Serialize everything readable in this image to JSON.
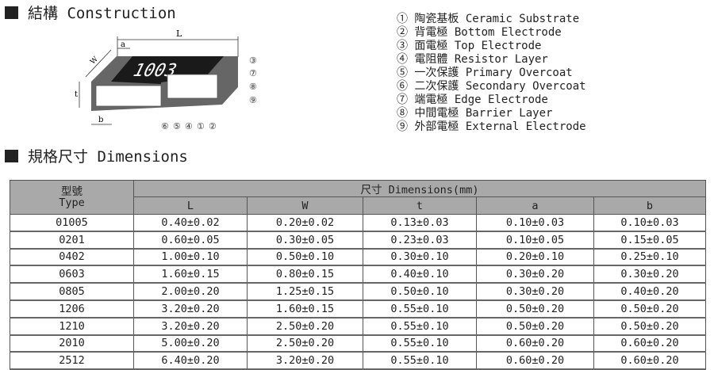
{
  "construction": {
    "title": "結構 Construction",
    "diagram": {
      "marking": "1003",
      "dim_L": "L",
      "dim_a": "a",
      "dim_W": "W",
      "dim_t": "t",
      "dim_b": "b",
      "callouts_right": [
        "③",
        "⑦",
        "⑧",
        "⑨"
      ],
      "callouts_bottom": [
        "⑥",
        "⑤",
        "④",
        "①",
        "②"
      ]
    },
    "legend": [
      "① 陶瓷基板 Ceramic Substrate",
      "② 背電極 Bottom Electrode",
      "③ 面電極 Top Electrode",
      "④ 電阻體 Resistor Layer",
      "⑤ 一次保護 Primary Overcoat",
      "⑥ 二次保護 Secondary Overcoat",
      "⑦ 端電極 Edge Electrode",
      "⑧ 中間電極 Barrier Layer",
      "⑨ 外部電極 External Electrode"
    ]
  },
  "dimensions": {
    "title": "規格尺寸 Dimensions",
    "type_header_zh": "型號",
    "type_header_en": "Type",
    "group_header": "尺寸 Dimensions(mm)",
    "columns": [
      "L",
      "W",
      "t",
      "a",
      "b"
    ],
    "rows": [
      [
        "01005",
        "0.40±0.02",
        "0.20±0.02",
        "0.13±0.03",
        "0.10±0.03",
        "0.10±0.03"
      ],
      [
        "0201",
        "0.60±0.05",
        "0.30±0.05",
        "0.23±0.03",
        "0.10±0.05",
        "0.15±0.05"
      ],
      [
        "0402",
        "1.00±0.10",
        "0.50±0.10",
        "0.30±0.10",
        "0.20±0.10",
        "0.25±0.10"
      ],
      [
        "0603",
        "1.60±0.15",
        "0.80±0.15",
        "0.40±0.10",
        "0.30±0.20",
        "0.30±0.20"
      ],
      [
        "0805",
        "2.00±0.20",
        "1.25±0.15",
        "0.50±0.10",
        "0.30±0.20",
        "0.40±0.20"
      ],
      [
        "1206",
        "3.20±0.20",
        "1.60±0.15",
        "0.55±0.10",
        "0.50±0.20",
        "0.50±0.20"
      ],
      [
        "1210",
        "3.20±0.20",
        "2.50±0.20",
        "0.55±0.10",
        "0.50±0.20",
        "0.50±0.20"
      ],
      [
        "2010",
        "5.00±0.20",
        "2.50±0.20",
        "0.55±0.10",
        "0.60±0.20",
        "0.60±0.20"
      ],
      [
        "2512",
        "6.40±0.20",
        "3.20±0.20",
        "0.55±0.10",
        "0.60±0.20",
        "0.60±0.20"
      ]
    ]
  }
}
